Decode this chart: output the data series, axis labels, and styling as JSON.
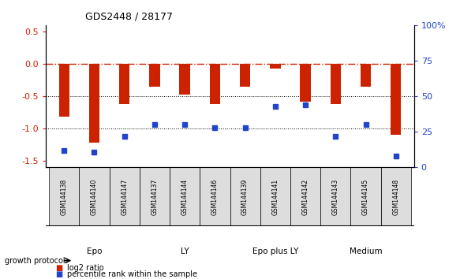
{
  "title": "GDS2448 / 28177",
  "samples": [
    "GSM144138",
    "GSM144140",
    "GSM144147",
    "GSM144137",
    "GSM144144",
    "GSM144146",
    "GSM144139",
    "GSM144141",
    "GSM144142",
    "GSM144143",
    "GSM144145",
    "GSM144148"
  ],
  "log2_ratio": [
    -0.82,
    -1.22,
    -0.62,
    -0.35,
    -0.48,
    -0.62,
    -0.35,
    -0.07,
    -0.58,
    -0.62,
    -0.35,
    -1.1
  ],
  "percentile_rank": [
    12,
    11,
    22,
    30,
    30,
    28,
    28,
    43,
    44,
    22,
    30,
    8
  ],
  "bar_color": "#cc2200",
  "dot_color": "#2244cc",
  "zero_line_color": "#cc2200",
  "groups": [
    {
      "label": "Epo",
      "start": 0,
      "end": 2,
      "color": "#ccf0cc"
    },
    {
      "label": "LY",
      "start": 3,
      "end": 5,
      "color": "#ddfadd"
    },
    {
      "label": "Epo plus LY",
      "start": 6,
      "end": 8,
      "color": "#88dd88"
    },
    {
      "label": "Medium",
      "start": 9,
      "end": 11,
      "color": "#44cc44"
    }
  ],
  "ylim_left": [
    -1.6,
    0.6
  ],
  "ylim_right": [
    0,
    100
  ],
  "yticks_left": [
    0.5,
    0.0,
    -0.5,
    -1.0,
    -1.5
  ],
  "yticks_right": [
    100,
    75,
    50,
    25,
    0
  ],
  "bar_width": 0.35,
  "sample_box_color": "#dddddd",
  "growth_protocol_label": "growth protocol",
  "legend_log2": "log2 ratio",
  "legend_pct": "percentile rank within the sample",
  "fig_width": 5.83,
  "fig_height": 3.54
}
